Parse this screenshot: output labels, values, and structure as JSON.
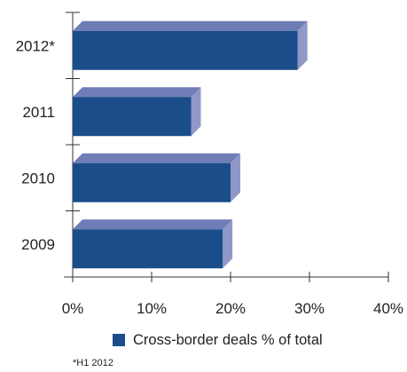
{
  "chart_data": {
    "type": "bar",
    "orientation": "horizontal",
    "style": "3d",
    "categories": [
      "2012*",
      "2011",
      "2010",
      "2009"
    ],
    "series": [
      {
        "name": "Cross-border deals % of total",
        "values": [
          28.5,
          15,
          20,
          19
        ]
      }
    ],
    "xlim": [
      0,
      40
    ],
    "x_ticks": [
      "0%",
      "10%",
      "20%",
      "30%",
      "40%"
    ],
    "grid": false,
    "legend_position": "bottom",
    "colors": {
      "front": "#1a4d8a",
      "top": "#6e7db6",
      "side": "#9098c8"
    },
    "footnote": "*H1 2012"
  }
}
